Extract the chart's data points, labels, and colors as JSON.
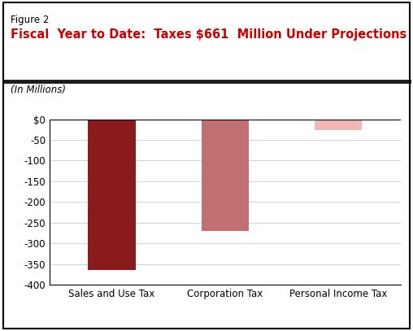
{
  "figure_label": "Figure 2",
  "title": "Fiscal  Year to Date:  Taxes $661  Million Under Projections",
  "subtitle": "(In Millions)",
  "categories": [
    "Sales and Use Tax",
    "Corporation Tax",
    "Personal Income Tax"
  ],
  "values": [
    -365,
    -270,
    -26
  ],
  "bar_colors": [
    "#8B1A1A",
    "#C07070",
    "#F2B8B8"
  ],
  "ylim": [
    -400,
    0
  ],
  "yticks": [
    0,
    -50,
    -100,
    -150,
    -200,
    -250,
    -300,
    -350,
    -400
  ],
  "ytick_labels": [
    "$0",
    "-50",
    "-100",
    "-150",
    "-200",
    "-250",
    "-300",
    "-350",
    "-400"
  ],
  "title_color": "#CC0000",
  "figure_label_color": "#000000",
  "background_color": "#FFFFFF",
  "plot_bg_color": "#FFFFFF",
  "grid_color": "#CCCCCC",
  "border_color": "#000000",
  "separator_color": "#1A1A1A",
  "title_fontsize": 10.5,
  "label_fontsize": 8.5,
  "subtitle_fontsize": 8.5,
  "tick_fontsize": 8.5,
  "xtick_fontsize": 8.5
}
